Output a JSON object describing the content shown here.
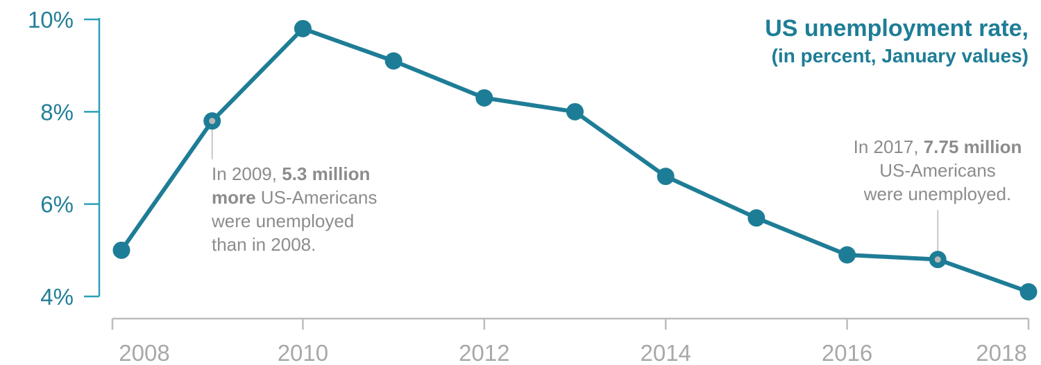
{
  "chart_data": {
    "type": "line",
    "title": "US unemployment rate,",
    "subtitle": "(in percent, January values)",
    "x": [
      2008,
      2009,
      2010,
      2011,
      2012,
      2013,
      2014,
      2015,
      2016,
      2017,
      2018
    ],
    "series": [
      {
        "values": [
          5.0,
          7.8,
          9.8,
          9.1,
          8.3,
          8.0,
          6.6,
          5.7,
          4.9,
          4.8,
          4.1
        ]
      }
    ],
    "y_ticks": [
      {
        "value": 4,
        "label": "4%"
      },
      {
        "value": 6,
        "label": "6%"
      },
      {
        "value": 8,
        "label": "8%"
      },
      {
        "value": 10,
        "label": "10%"
      }
    ],
    "x_ticks": [
      {
        "value": 2008,
        "label": "2008"
      },
      {
        "value": 2010,
        "label": "2010"
      },
      {
        "value": 2012,
        "label": "2012"
      },
      {
        "value": 2014,
        "label": "2014"
      },
      {
        "value": 2016,
        "label": "2016"
      },
      {
        "value": 2018,
        "label": "2018"
      }
    ],
    "xlim": [
      2008,
      2018
    ],
    "ylim": [
      4,
      10
    ],
    "grid": false,
    "legend": "none",
    "colors": {
      "line": "#1e7d96",
      "axis": "#2aa0b8",
      "x_axis": "#bdbdbd",
      "annotation": "#8c8c8c",
      "annotation_marker": "#b8b8b8"
    },
    "annotations": [
      {
        "x": 2009,
        "y": 7.8,
        "lines": [
          [
            {
              "text": "In 2009, "
            },
            {
              "text": "5.3 million",
              "bold": true
            }
          ],
          [
            {
              "text": "more",
              "bold": true
            },
            {
              "text": " US-Americans"
            }
          ],
          [
            {
              "text": "were unemployed"
            }
          ],
          [
            {
              "text": "than in 2008."
            }
          ]
        ]
      },
      {
        "x": 2017,
        "y": 4.8,
        "lines": [
          [
            {
              "text": "In 2017, "
            },
            {
              "text": "7.75 million",
              "bold": true
            }
          ],
          [
            {
              "text": "US-Americans"
            }
          ],
          [
            {
              "text": "were unemployed."
            }
          ]
        ]
      }
    ]
  }
}
